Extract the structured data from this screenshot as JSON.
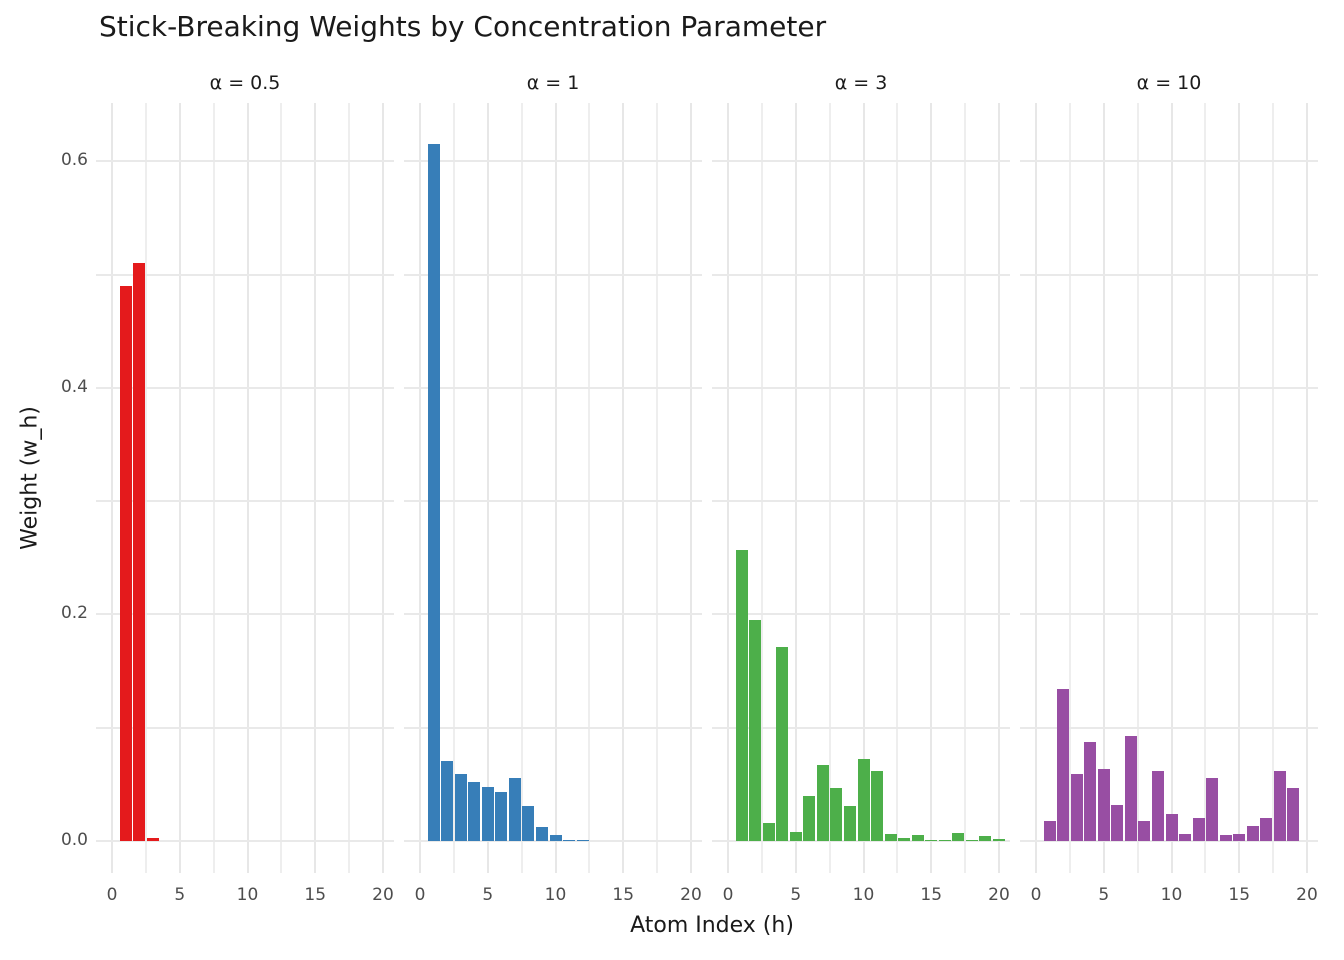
{
  "title": "Stick-Breaking Weights by Concentration Parameter",
  "axes": {
    "x_title": "Atom Index (h)",
    "y_title": "Weight (w_h)",
    "x_tick_labels": [
      "0",
      "5",
      "10",
      "15",
      "20"
    ],
    "y_tick_labels": [
      "0.0",
      "0.2",
      "0.4",
      "0.6"
    ]
  },
  "chart_data": {
    "type": "bar",
    "title": "Stick-Breaking Weights by Concentration Parameter",
    "xlabel": "Atom Index (h)",
    "ylabel": "Weight (w_h)",
    "x": [
      1,
      2,
      3,
      4,
      5,
      6,
      7,
      8,
      9,
      10,
      11,
      12,
      13,
      14,
      15,
      16,
      17,
      18,
      19,
      20
    ],
    "x_ticks": [
      0,
      5,
      10,
      15,
      20
    ],
    "y_ticks": [
      0.0,
      0.2,
      0.4,
      0.6
    ],
    "xlim": [
      -0.6,
      20.8
    ],
    "ylim": [
      -0.03,
      0.65
    ],
    "grid": true,
    "legend": "none",
    "facet_variable": "concentration parameter alpha",
    "facets": [
      {
        "label": "α = 0.5",
        "alpha": 0.5,
        "color": "#E41A1C",
        "values": [
          0.49,
          0.51,
          0.003,
          0,
          0,
          0,
          0,
          0,
          0,
          0,
          0,
          0,
          0,
          0,
          0,
          0,
          0,
          0,
          0,
          0
        ]
      },
      {
        "label": "α = 1",
        "alpha": 1,
        "color": "#377EB8",
        "values": [
          0.615,
          0.071,
          0.059,
          0.052,
          0.048,
          0.043,
          0.056,
          0.031,
          0.012,
          0.005,
          0.001,
          0.001,
          0,
          0,
          0,
          0,
          0,
          0,
          0,
          0
        ]
      },
      {
        "label": "α = 3",
        "alpha": 3,
        "color": "#4DAF4A",
        "values": [
          0.257,
          0.195,
          0.016,
          0.171,
          0.008,
          0.04,
          0.067,
          0.047,
          0.031,
          0.072,
          0.062,
          0.006,
          0.003,
          0.005,
          0.001,
          0.001,
          0.007,
          0.001,
          0.004,
          0.002
        ]
      },
      {
        "label": "α = 10",
        "alpha": 10,
        "color": "#984EA3",
        "values": [
          0.018,
          0.134,
          0.059,
          0.087,
          0.064,
          0.032,
          0.093,
          0.018,
          0.062,
          0.024,
          0.006,
          0.02,
          0.056,
          0.005,
          0.006,
          0.013,
          0.02,
          0.062,
          0.047,
          0
        ]
      }
    ]
  }
}
